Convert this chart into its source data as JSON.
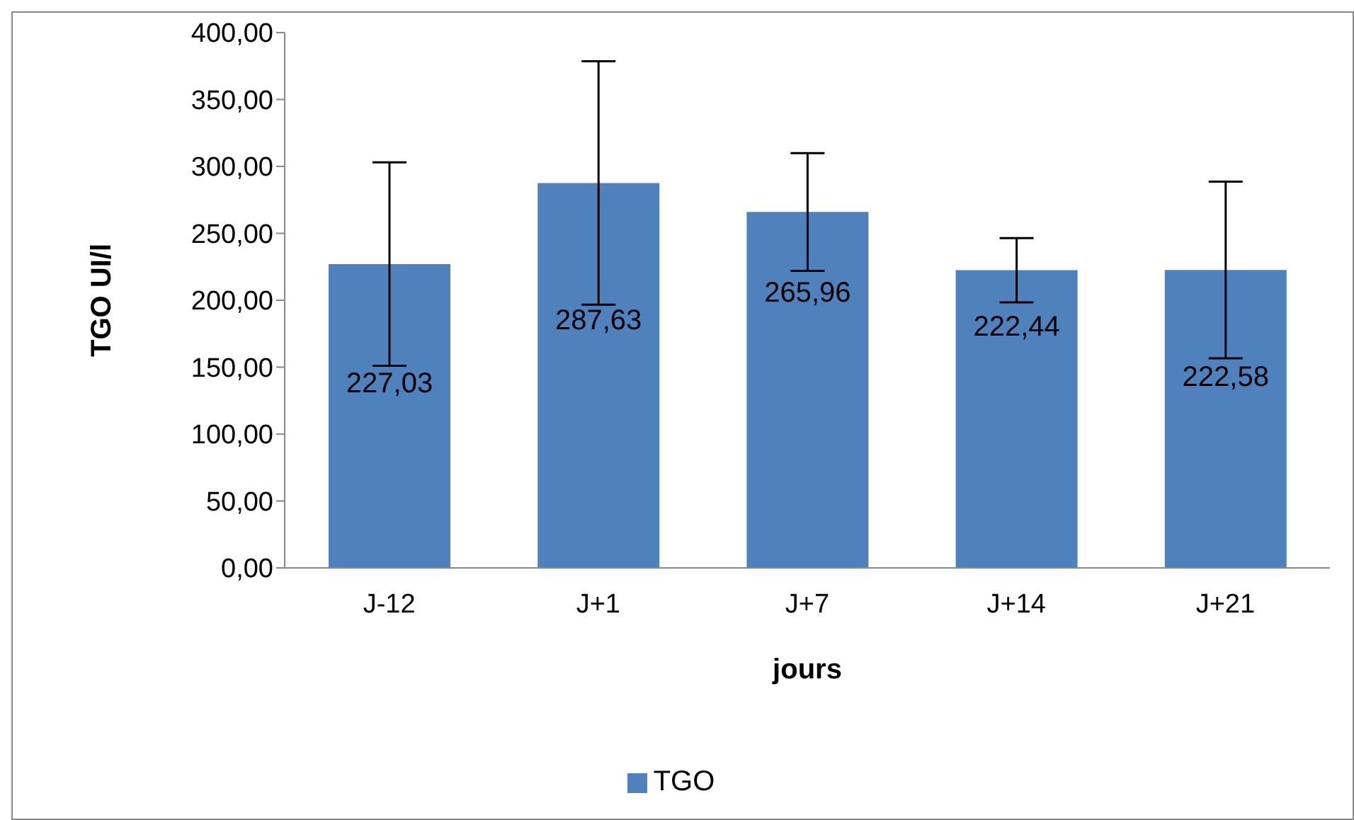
{
  "chart_data": {
    "type": "bar",
    "xlabel": "jours",
    "ylabel": "TGO UI/l",
    "categories": [
      "J-12",
      "J+1",
      "J+7",
      "J+14",
      "J+21"
    ],
    "series": [
      {
        "name": "TGO",
        "color": "#4f81bd",
        "values": [
          227.03,
          287.63,
          265.96,
          222.44,
          222.58
        ],
        "errors": [
          76,
          91,
          44,
          24,
          66
        ],
        "value_labels": [
          "227,03",
          "287,63",
          "265,96",
          "222,44",
          "222,58"
        ]
      }
    ],
    "ylim": [
      0,
      400
    ],
    "yticks": [
      {
        "value": 0,
        "label": "0,00"
      },
      {
        "value": 50,
        "label": "50,00"
      },
      {
        "value": 100,
        "label": "100,00"
      },
      {
        "value": 150,
        "label": "150,00"
      },
      {
        "value": 200,
        "label": "200,00"
      },
      {
        "value": 250,
        "label": "250,00"
      },
      {
        "value": 300,
        "label": "300,00"
      },
      {
        "value": 350,
        "label": "350,00"
      },
      {
        "value": 400,
        "label": "400,00"
      }
    ],
    "grid": false,
    "legend": "bottom"
  }
}
